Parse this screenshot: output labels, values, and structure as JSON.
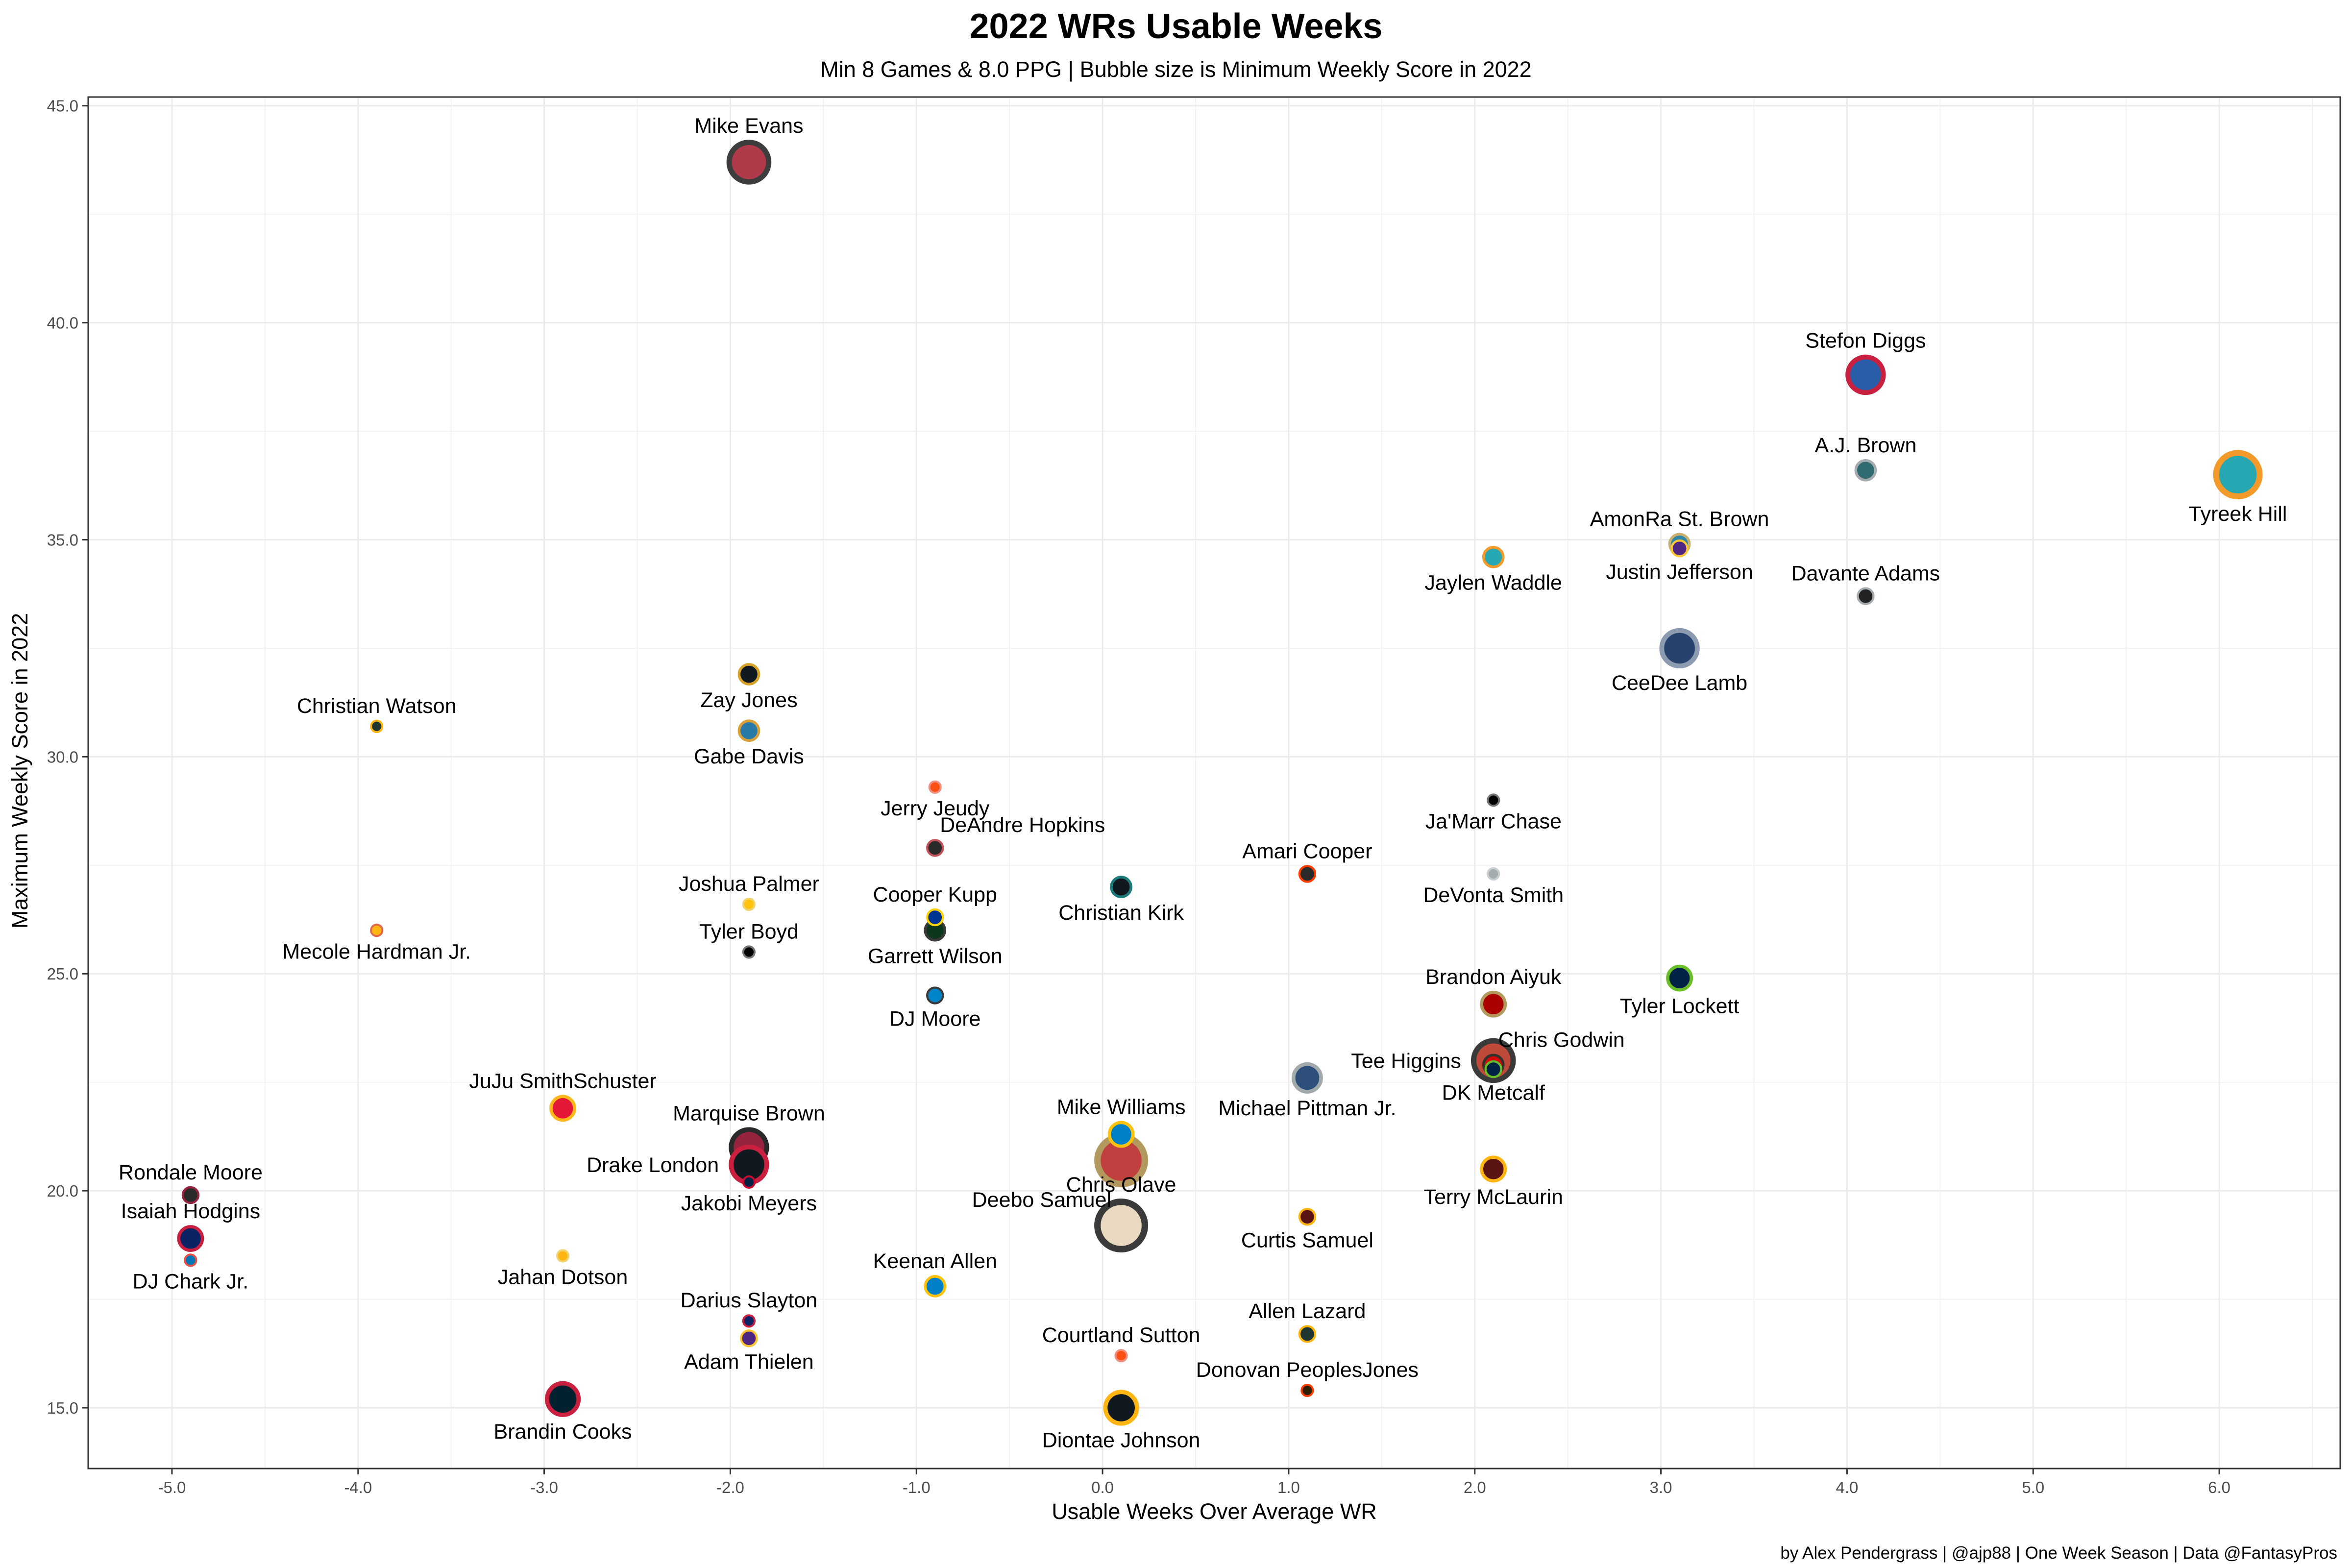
{
  "chart_data": {
    "type": "scatter",
    "title": "2022 WRs Usable Weeks",
    "subtitle": "Min 8 Games & 8.0 PPG | Bubble size is Minimum Weekly Score in 2022",
    "xlabel": "Usable Weeks Over Average WR",
    "ylabel": "Maximum Weekly Score in 2022",
    "caption": "by Alex Pendergrass | @ajp88 | One Week Season | Data @FantasyPros",
    "xlim": [
      -5.45,
      6.65
    ],
    "ylim": [
      13.6,
      45.2
    ],
    "x_ticks": [
      -5,
      -4,
      -3,
      -2,
      -1,
      0,
      1,
      2,
      3,
      4,
      5,
      6
    ],
    "x_tick_labels": [
      "-5.0",
      "-4.0",
      "-3.0",
      "-2.0",
      "-1.0",
      "0.0",
      "1.0",
      "2.0",
      "3.0",
      "4.0",
      "5.0",
      "6.0"
    ],
    "y_ticks": [
      15,
      20,
      25,
      30,
      35,
      40,
      45
    ],
    "y_tick_labels": [
      "15.0",
      "20.0",
      "25.0",
      "30.0",
      "35.0",
      "40.0",
      "45.0"
    ],
    "grid": true,
    "legend": "none",
    "points": [
      {
        "name": "Mike Evans",
        "x": -1.9,
        "y": 43.7,
        "size": 8,
        "fill": "#b0394a",
        "stroke": "#3d3d3d",
        "label_pos": "above"
      },
      {
        "name": "Stefon Diggs",
        "x": 4.1,
        "y": 38.8,
        "size": 7,
        "fill": "#2a5ea8",
        "stroke": "#c8203e",
        "label_pos": "above"
      },
      {
        "name": "Tyreek Hill",
        "x": 6.1,
        "y": 36.5,
        "size": 9,
        "fill": "#26a7b2",
        "stroke": "#f39a2a",
        "label_pos": "below"
      },
      {
        "name": "A.J. Brown",
        "x": 4.1,
        "y": 36.6,
        "size": 3,
        "fill": "#2f6b70",
        "stroke": "#a5acaf",
        "label_pos": "above"
      },
      {
        "name": "AmonRa St. Brown",
        "x": 3.1,
        "y": 34.9,
        "size": 3,
        "fill": "#2f86a8",
        "stroke": "#c9b06f",
        "label_pos": "above"
      },
      {
        "name": "Justin Jefferson",
        "x": 3.1,
        "y": 34.8,
        "size": 2,
        "fill": "#4f2683",
        "stroke": "#ffc62f",
        "label_pos": "below"
      },
      {
        "name": "Jaylen Waddle",
        "x": 2.1,
        "y": 34.6,
        "size": 3,
        "fill": "#26a7b2",
        "stroke": "#f39a2a",
        "label_pos": "below"
      },
      {
        "name": "Davante Adams",
        "x": 4.1,
        "y": 33.7,
        "size": 2,
        "fill": "#222222",
        "stroke": "#a5acaf",
        "label_pos": "above"
      },
      {
        "name": "CeeDee Lamb",
        "x": 3.1,
        "y": 32.5,
        "size": 7,
        "fill": "#27426c",
        "stroke": "#8c9bb0",
        "label_pos": "below"
      },
      {
        "name": "Zay Jones",
        "x": -1.9,
        "y": 31.9,
        "size": 3,
        "fill": "#101820",
        "stroke": "#d7a22a",
        "label_pos": "below"
      },
      {
        "name": "Christian Watson",
        "x": -3.9,
        "y": 30.7,
        "size": 1,
        "fill": "#203731",
        "stroke": "#ffb612",
        "label_pos": "above"
      },
      {
        "name": "Gabe Davis",
        "x": -1.9,
        "y": 30.6,
        "size": 3,
        "fill": "#2a7aa8",
        "stroke": "#d8a13a",
        "label_pos": "below"
      },
      {
        "name": "Jerry Jeudy",
        "x": -0.9,
        "y": 29.3,
        "size": 1,
        "fill": "#fb4f14",
        "stroke": "#f09080",
        "label_pos": "below"
      },
      {
        "name": "Ja'Marr Chase",
        "x": 2.1,
        "y": 29.0,
        "size": 1,
        "fill": "#000000",
        "stroke": "#777777",
        "label_pos": "below"
      },
      {
        "name": "DeAndre Hopkins",
        "x": -0.9,
        "y": 27.9,
        "size": 2,
        "fill": "#2a2a2a",
        "stroke": "#c4525a",
        "label_pos": "above-right"
      },
      {
        "name": "Amari Cooper",
        "x": 1.1,
        "y": 27.3,
        "size": 2,
        "fill": "#2a2a2a",
        "stroke": "#ff3c00",
        "label_pos": "above"
      },
      {
        "name": "DeVonta Smith",
        "x": 2.1,
        "y": 27.3,
        "size": 1,
        "fill": "#a5acaf",
        "stroke": "#c9ced1",
        "label_pos": "below"
      },
      {
        "name": "Christian Kirk",
        "x": 0.1,
        "y": 27.0,
        "size": 3,
        "fill": "#101820",
        "stroke": "#1b7a7a",
        "label_pos": "below"
      },
      {
        "name": "Joshua Palmer",
        "x": -1.9,
        "y": 26.6,
        "size": 1,
        "fill": "#ffc20e",
        "stroke": "#f2d36b",
        "label_pos": "above"
      },
      {
        "name": "Cooper Kupp",
        "x": -0.9,
        "y": 26.3,
        "size": 2,
        "fill": "#003594",
        "stroke": "#ffd100",
        "label_pos": "above"
      },
      {
        "name": "Mecole Hardman Jr.",
        "x": -3.9,
        "y": 26.0,
        "size": 1,
        "fill": "#ffb612",
        "stroke": "#e06a4a",
        "label_pos": "below"
      },
      {
        "name": "Garrett Wilson",
        "x": -0.9,
        "y": 26.0,
        "size": 3,
        "fill": "#0c371d",
        "stroke": "#3a3a3a",
        "label_pos": "below"
      },
      {
        "name": "Tyler Boyd",
        "x": -1.9,
        "y": 25.5,
        "size": 1,
        "fill": "#000000",
        "stroke": "#777777",
        "label_pos": "above"
      },
      {
        "name": "Tyler Lockett",
        "x": 3.1,
        "y": 24.9,
        "size": 4,
        "fill": "#002244",
        "stroke": "#69be28",
        "label_pos": "below"
      },
      {
        "name": "DJ Moore",
        "x": -0.9,
        "y": 24.5,
        "size": 2,
        "fill": "#0085ca",
        "stroke": "#3a3a3a",
        "label_pos": "below"
      },
      {
        "name": "Brandon Aiyuk",
        "x": 2.1,
        "y": 24.3,
        "size": 4,
        "fill": "#aa0000",
        "stroke": "#b3995d",
        "label_pos": "above"
      },
      {
        "name": "Tee Higgins",
        "x": 2.1,
        "y": 23.0,
        "size": 8,
        "fill": "#c04a3a",
        "stroke": "#3a3a3a",
        "label_pos": "left"
      },
      {
        "name": "Chris Godwin",
        "x": 2.1,
        "y": 22.9,
        "size": 3,
        "fill": "#d50a0a",
        "stroke": "#34302b",
        "label_pos": "above-right"
      },
      {
        "name": "DK Metcalf",
        "x": 2.1,
        "y": 22.8,
        "size": 2,
        "fill": "#002244",
        "stroke": "#69be28",
        "label_pos": "below"
      },
      {
        "name": "Michael Pittman Jr.",
        "x": 1.1,
        "y": 22.6,
        "size": 5,
        "fill": "#2d4f7a",
        "stroke": "#a2aaad",
        "label_pos": "below"
      },
      {
        "name": "JuJu SmithSchuster",
        "x": -2.9,
        "y": 21.9,
        "size": 4,
        "fill": "#e31837",
        "stroke": "#ffb81c",
        "label_pos": "above"
      },
      {
        "name": "Mike Williams",
        "x": 0.1,
        "y": 21.3,
        "size": 4,
        "fill": "#0080c6",
        "stroke": "#ffc20e",
        "label_pos": "above"
      },
      {
        "name": "Marquise Brown",
        "x": -1.9,
        "y": 21.0,
        "size": 7,
        "fill": "#97233f",
        "stroke": "#2a2a2a",
        "label_pos": "above"
      },
      {
        "name": "Deebo Samuel",
        "x": 0.1,
        "y": 20.7,
        "size": 10,
        "fill": "#c04040",
        "stroke": "#b3995d",
        "label_pos": "below-left"
      },
      {
        "name": "Drake London",
        "x": -1.9,
        "y": 20.6,
        "size": 7,
        "fill": "#101820",
        "stroke": "#c8203e",
        "label_pos": "left"
      },
      {
        "name": "Terry McLaurin",
        "x": 2.1,
        "y": 20.5,
        "size": 4,
        "fill": "#5a1414",
        "stroke": "#ffb612",
        "label_pos": "below"
      },
      {
        "name": "Jakobi Meyers",
        "x": -1.9,
        "y": 20.2,
        "size": 1,
        "fill": "#002244",
        "stroke": "#c60c30",
        "label_pos": "below"
      },
      {
        "name": "Rondale Moore",
        "x": -4.9,
        "y": 19.9,
        "size": 2,
        "fill": "#2a2a2a",
        "stroke": "#97233f",
        "label_pos": "above"
      },
      {
        "name": "Curtis Samuel",
        "x": 1.1,
        "y": 19.4,
        "size": 2,
        "fill": "#5a1414",
        "stroke": "#ffb612",
        "label_pos": "below"
      },
      {
        "name": "Chris Olave",
        "x": 0.1,
        "y": 19.2,
        "size": 10,
        "fill": "#e8d9c0",
        "stroke": "#3a3a3a",
        "label_pos": "above"
      },
      {
        "name": "Isaiah Hodgins",
        "x": -4.9,
        "y": 18.9,
        "size": 4,
        "fill": "#0b2265",
        "stroke": "#c8203e",
        "label_pos": "above"
      },
      {
        "name": "Jahan Dotson",
        "x": -2.9,
        "y": 18.5,
        "size": 1,
        "fill": "#ffb612",
        "stroke": "#f2d36b",
        "label_pos": "below"
      },
      {
        "name": "DJ Chark Jr.",
        "x": -4.9,
        "y": 18.4,
        "size": 1,
        "fill": "#0076b6",
        "stroke": "#e8514a",
        "label_pos": "below"
      },
      {
        "name": "Keenan Allen",
        "x": -0.9,
        "y": 17.8,
        "size": 3,
        "fill": "#0080c6",
        "stroke": "#ffc20e",
        "label_pos": "above"
      },
      {
        "name": "Darius Slayton",
        "x": -1.9,
        "y": 17.0,
        "size": 1,
        "fill": "#0b2265",
        "stroke": "#c8203e",
        "label_pos": "above"
      },
      {
        "name": "Allen Lazard",
        "x": 1.1,
        "y": 16.7,
        "size": 2,
        "fill": "#203731",
        "stroke": "#ffb612",
        "label_pos": "above"
      },
      {
        "name": "Adam Thielen",
        "x": -1.9,
        "y": 16.6,
        "size": 2,
        "fill": "#4f2683",
        "stroke": "#ffc62f",
        "label_pos": "below"
      },
      {
        "name": "Courtland Sutton",
        "x": 0.1,
        "y": 16.2,
        "size": 1,
        "fill": "#fb4f14",
        "stroke": "#f09080",
        "label_pos": "above"
      },
      {
        "name": "Donovan PeoplesJones",
        "x": 1.1,
        "y": 15.4,
        "size": 1,
        "fill": "#311d00",
        "stroke": "#ff3c00",
        "label_pos": "above"
      },
      {
        "name": "Brandin Cooks",
        "x": -2.9,
        "y": 15.2,
        "size": 6,
        "fill": "#03202f",
        "stroke": "#c8203e",
        "label_pos": "below"
      },
      {
        "name": "Diontae Johnson",
        "x": 0.1,
        "y": 15.0,
        "size": 6,
        "fill": "#101820",
        "stroke": "#ffb612",
        "label_pos": "below"
      }
    ]
  }
}
